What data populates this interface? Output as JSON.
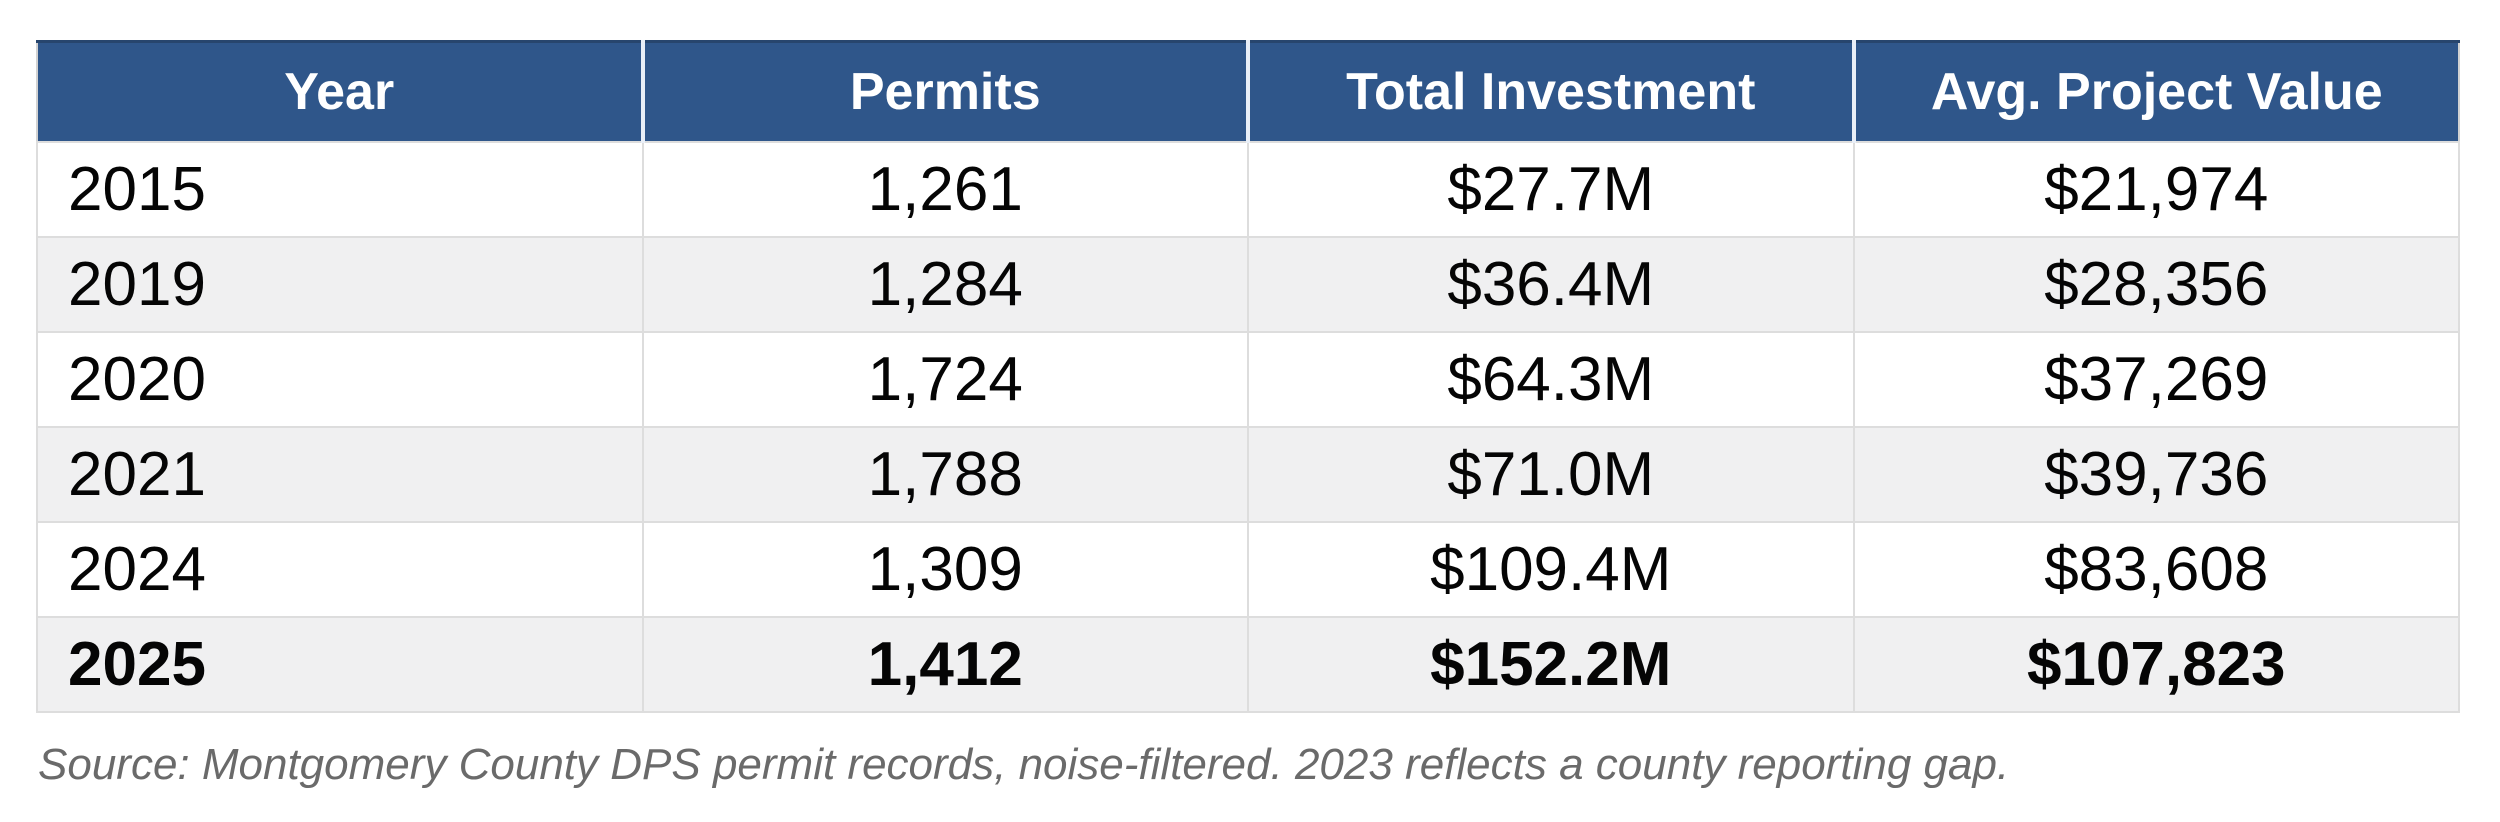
{
  "colors": {
    "header_background": "#2F568A",
    "header_text": "#FFFFFF",
    "header_divider": "#E9EFF8",
    "row_alt_background": "#F0F0F1",
    "row_background": "#FFFFFF",
    "cell_border": "#DDDDDD",
    "outer_border": "#D2D2D2",
    "body_text": "#050505",
    "source_text": "#6A6A6A"
  },
  "table": {
    "columns": [
      "Year",
      "Permits",
      "Total Investment",
      "Avg. Project Value"
    ],
    "rows": [
      {
        "cells": [
          "2015",
          "1,261",
          "$27.7M",
          "$21,974"
        ]
      },
      {
        "cells": [
          "2019",
          "1,284",
          "$36.4M",
          "$28,356"
        ]
      },
      {
        "cells": [
          "2020",
          "1,724",
          "$64.3M",
          "$37,269"
        ]
      },
      {
        "cells": [
          "2021",
          "1,788",
          "$71.0M",
          "$39,736"
        ]
      },
      {
        "cells": [
          "2024",
          "1,309",
          "$109.4M",
          "$83,608"
        ]
      },
      {
        "cells": [
          "2025",
          "1,412",
          "$152.2M",
          "$107,823"
        ]
      }
    ]
  },
  "source_note": "Source: Montgomery County DPS permit records, noise-filtered. 2023 reflects a county reporting gap.",
  "chart_data": {
    "type": "table",
    "title": "",
    "columns": [
      "Year",
      "Permits",
      "Total Investment",
      "Avg. Project Value"
    ],
    "rows": [
      [
        "2015",
        1261,
        "$27.7M",
        "$21,974"
      ],
      [
        "2019",
        1284,
        "$36.4M",
        "$28,356"
      ],
      [
        "2020",
        1724,
        "$64.3M",
        "$37,269"
      ],
      [
        "2021",
        1788,
        "$71.0M",
        "$39,736"
      ],
      [
        "2024",
        1309,
        "$109.4M",
        "$83,608"
      ],
      [
        "2025",
        1412,
        "$152.2M",
        "$107,823"
      ]
    ],
    "series": [
      {
        "name": "Permits",
        "values": [
          1261,
          1284,
          1724,
          1788,
          1309,
          1412
        ]
      },
      {
        "name": "Total Investment ($M)",
        "values": [
          27.7,
          36.4,
          64.3,
          71.0,
          109.4,
          152.2
        ]
      },
      {
        "name": "Avg. Project Value ($)",
        "values": [
          21974,
          28356,
          37269,
          39736,
          83608,
          107823
        ]
      }
    ],
    "categories": [
      "2015",
      "2019",
      "2020",
      "2021",
      "2024",
      "2025"
    ],
    "highlighted_row": "2025",
    "row_striping": true,
    "annotations": "Source: Montgomery County DPS permit records, noise-filtered. 2023 reflects a county reporting gap."
  }
}
